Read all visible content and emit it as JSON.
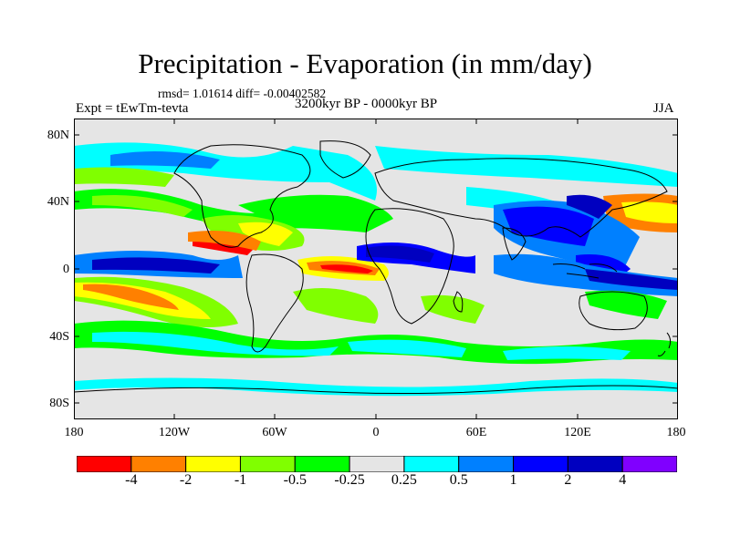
{
  "title": "Precipitation - Evaporation (in mm/day)",
  "stats": "rmsd= 1.01614 diff= -0.00402582",
  "experiment": "Expt = tEwTm-tevta",
  "period": "3200kyr BP - 0000kyr BP",
  "season": "JJA",
  "lat_labels": [
    "80N",
    "40N",
    "0",
    "40S",
    "80S"
  ],
  "lon_labels": [
    "180",
    "120W",
    "60W",
    "0",
    "60E",
    "120E",
    "180"
  ],
  "colorbar": {
    "colors": [
      "#ff0000",
      "#ff8000",
      "#ffff00",
      "#80ff00",
      "#00ff00",
      "#e5e5e5",
      "#00ffff",
      "#0080ff",
      "#0000ff",
      "#0000c0",
      "#8000ff"
    ],
    "labels": [
      "-4",
      "-2",
      "-1",
      "-0.5",
      "-0.25",
      "0.25",
      "0.5",
      "1",
      "2",
      "4"
    ]
  }
}
